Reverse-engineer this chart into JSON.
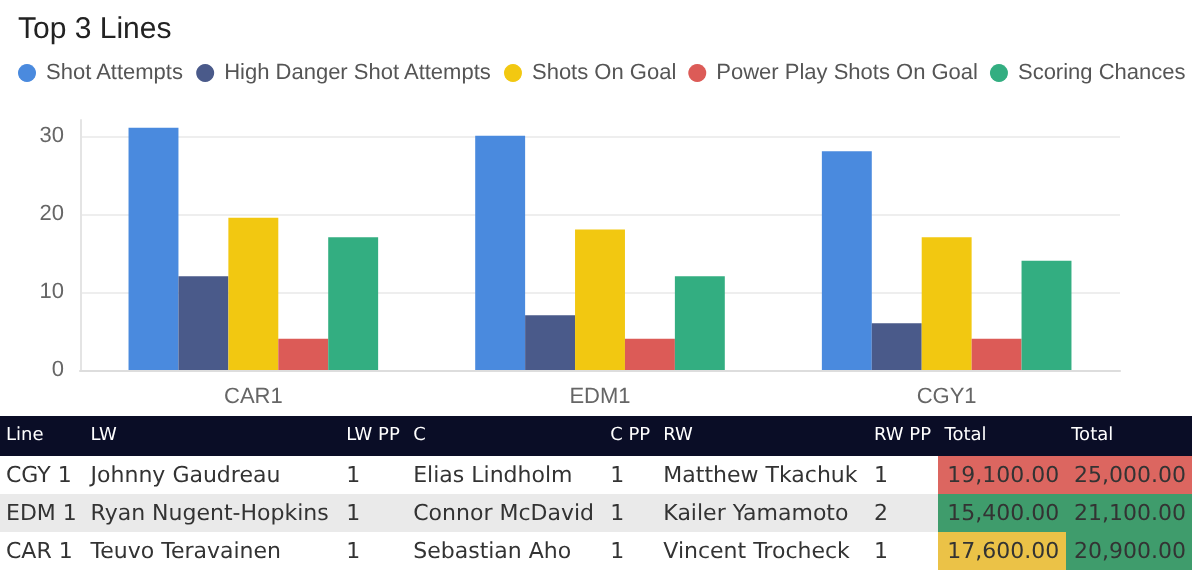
{
  "chart_data": [
    {
      "type": "bar",
      "title": "Top 3 Lines",
      "categories": [
        "CAR1",
        "EDM1",
        "CGY1"
      ],
      "series": [
        {
          "name": "Shot Attempts",
          "color": "#4a8ade",
          "values": [
            31,
            30,
            28
          ]
        },
        {
          "name": "High Danger Shot Attempts",
          "color": "#4a5a8a",
          "values": [
            12,
            7,
            6
          ]
        },
        {
          "name": "Shots On Goal",
          "color": "#f2c811",
          "values": [
            19.5,
            18,
            17
          ]
        },
        {
          "name": "Power Play Shots On Goal",
          "color": "#dc5b57",
          "values": [
            4,
            4,
            4
          ]
        },
        {
          "name": "Scoring Chances",
          "color": "#33ae81",
          "values": [
            17,
            12,
            14
          ]
        }
      ],
      "ylim": [
        0,
        32
      ],
      "yticks": [
        0,
        10,
        20,
        30
      ],
      "grid": "y",
      "legend": "top left"
    },
    {
      "type": "other",
      "categories": [
        "Line",
        "LW",
        "LW PP",
        "C",
        "C PP",
        "RW",
        "RW PP",
        "Total",
        "Total"
      ],
      "y_categories": [
        "CGY 1",
        "EDM 1",
        "CAR 1"
      ],
      "cell_labels": [
        [
          "Johnny Gaudreau",
          "1",
          "Elias Lindholm",
          "1",
          "Matthew Tkachuk",
          "1",
          "19,100.00",
          "25,000.00"
        ],
        [
          "Ryan Nugent-Hopkins",
          "1",
          "Connor McDavid",
          "1",
          "Kailer Yamamoto",
          "2",
          "15,400.00",
          "21,100.00"
        ],
        [
          "Teuvo Teravainen",
          "1",
          "Sebastian Aho",
          "1",
          "Vincent Trocheck",
          "1",
          "17,600.00",
          "20,900.00"
        ]
      ],
      "colors": [
        [
          null,
          null,
          null,
          null,
          null,
          null,
          "#dc6660",
          "#dc6660"
        ],
        [
          null,
          null,
          null,
          null,
          null,
          null,
          "#3f9c6c",
          "#3f9c6c"
        ],
        [
          null,
          null,
          null,
          null,
          null,
          null,
          "#ebc247",
          "#3f9c6c"
        ]
      ]
    }
  ]
}
